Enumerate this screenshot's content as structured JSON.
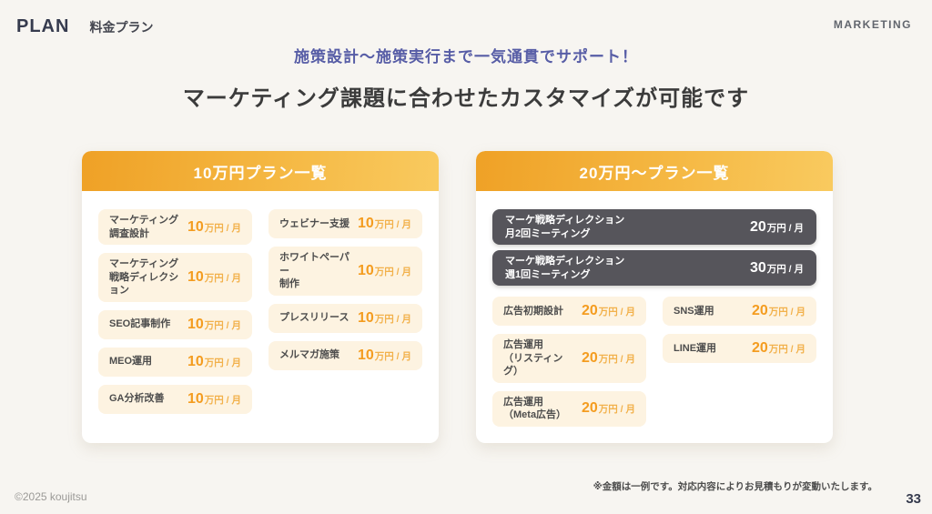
{
  "page": {
    "plan_label": "PLAN",
    "plan_subtitle": "料金プラン",
    "brand": "MARKETING",
    "subtitle": "施策設計〜施策実行まで一気通貫でサポート！",
    "heading": "マーケティング課題に合わせたカスタマイズが可能です",
    "footnote": "※金額は一例です。対応内容によりお見積もりが変動いたします。",
    "copyright": "©2025 koujitsu",
    "page_number": "33"
  },
  "colors": {
    "accent_orange": "#f49c1f",
    "header_gradient_start": "#efa126",
    "header_gradient_end": "#f9ca5f",
    "item_row_bg": "#fdf3e1",
    "featured_row_bg": "#56555b",
    "subtitle_blue": "#575da6"
  },
  "card_left": {
    "title": "10万円プラン一覧",
    "col1": [
      {
        "label": "マーケティング\n調査設計",
        "num": "10",
        "unit": "万円 / 月"
      },
      {
        "label": "マーケティング\n戦略ディレクション",
        "num": "10",
        "unit": "万円 / 月"
      },
      {
        "label": "SEO記事制作",
        "num": "10",
        "unit": "万円 / 月"
      },
      {
        "label": "MEO運用",
        "num": "10",
        "unit": "万円 / 月"
      },
      {
        "label": "GA分析改善",
        "num": "10",
        "unit": "万円 / 月"
      }
    ],
    "col2": [
      {
        "label": "ウェビナー支援",
        "num": "10",
        "unit": "万円 / 月"
      },
      {
        "label": "ホワイトペーパー\n制作",
        "num": "10",
        "unit": "万円 / 月"
      },
      {
        "label": "プレスリリース",
        "num": "10",
        "unit": "万円 / 月"
      },
      {
        "label": "メルマガ施策",
        "num": "10",
        "unit": "万円 / 月"
      }
    ]
  },
  "card_right": {
    "title": "20万円〜プラン一覧",
    "featured": [
      {
        "label": "マーケ戦略ディレクション\n月2回ミーティング",
        "num": "20",
        "unit": "万円 / 月"
      },
      {
        "label": "マーケ戦略ディレクション\n週1回ミーティング",
        "num": "30",
        "unit": "万円 / 月"
      }
    ],
    "col1": [
      {
        "label": "広告初期設計",
        "num": "20",
        "unit": "万円 / 月"
      },
      {
        "label": "広告運用\n（リスティング）",
        "num": "20",
        "unit": "万円 / 月"
      },
      {
        "label": "広告運用\n（Meta広告）",
        "num": "20",
        "unit": "万円 / 月"
      }
    ],
    "col2": [
      {
        "label": "SNS運用",
        "num": "20",
        "unit": "万円 / 月"
      },
      {
        "label": "LINE運用",
        "num": "20",
        "unit": "万円 / 月"
      }
    ]
  }
}
